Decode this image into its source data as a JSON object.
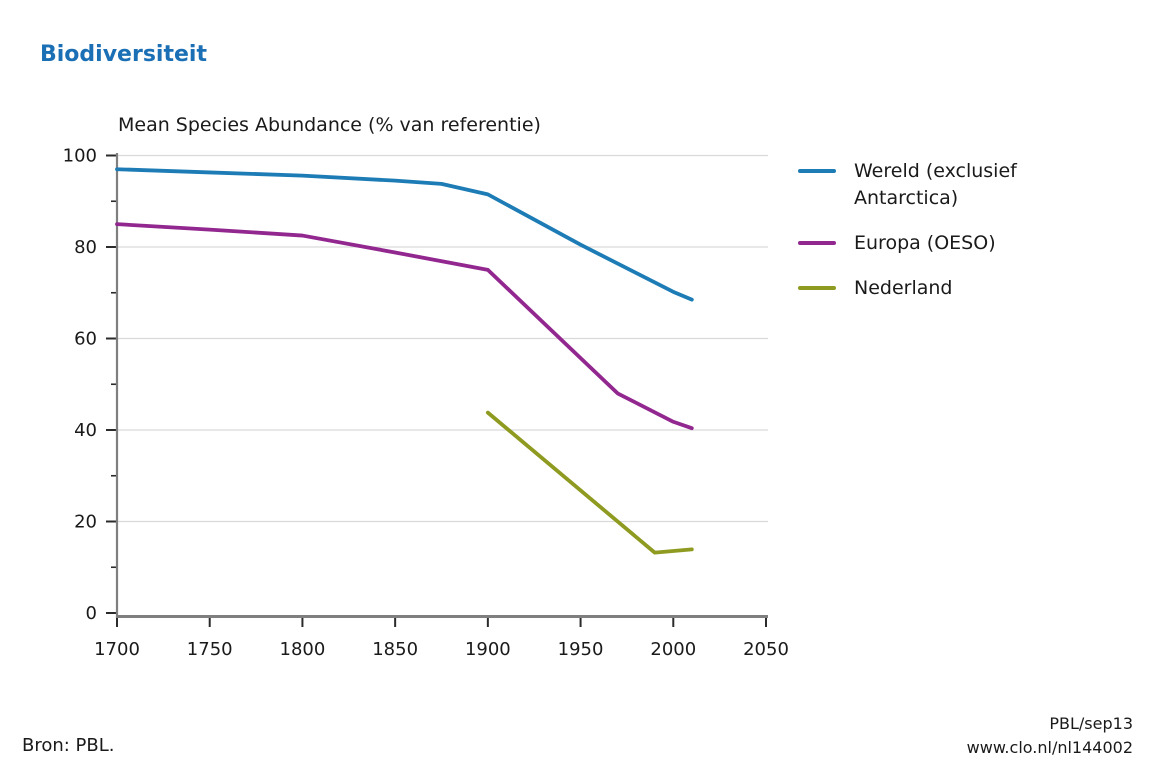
{
  "page": {
    "title": "Biodiversiteit",
    "title_color": "#1b6fb5",
    "source": "Bron: PBL.",
    "credit_line1": "PBL/sep13",
    "credit_line2": "www.clo.nl/nl144002"
  },
  "chart_data": {
    "type": "line",
    "title": "Mean Species Abundance (% van referentie)",
    "xlabel": "",
    "ylabel": "",
    "xlim": [
      1700,
      2050
    ],
    "ylim": [
      0,
      100
    ],
    "x_ticks": [
      1700,
      1750,
      1800,
      1850,
      1900,
      1950,
      2000,
      2050
    ],
    "y_ticks": [
      0,
      20,
      40,
      60,
      80,
      100
    ],
    "y_minor_ticks": [
      10,
      30,
      50,
      70,
      90
    ],
    "grid": "horizontal major",
    "gridline_color": "#d9d9d9",
    "axis_color": "#7f7f7f",
    "tick_color": "#2b2b2b",
    "text_color": "#1a1a1a",
    "legend_position": "right",
    "series": [
      {
        "name": "Wereld (exclusief Antarctica)",
        "color": "#1d7cb5",
        "points": [
          [
            1700,
            97
          ],
          [
            1750,
            96.3
          ],
          [
            1800,
            95.6
          ],
          [
            1850,
            94.5
          ],
          [
            1875,
            93.8
          ],
          [
            1900,
            91.5
          ],
          [
            1950,
            80.5
          ],
          [
            2000,
            70.2
          ],
          [
            2010,
            68.5
          ]
        ]
      },
      {
        "name": "Europa (OESO)",
        "color": "#92278f",
        "points": [
          [
            1700,
            85
          ],
          [
            1750,
            83.8
          ],
          [
            1800,
            82.5
          ],
          [
            1850,
            78.8
          ],
          [
            1900,
            75
          ],
          [
            1970,
            48
          ],
          [
            2000,
            41.8
          ],
          [
            2010,
            40.4
          ]
        ]
      },
      {
        "name": "Nederland",
        "color": "#8e9b20",
        "points": [
          [
            1900,
            43.8
          ],
          [
            1990,
            13.2
          ],
          [
            2010,
            13.9
          ]
        ]
      }
    ]
  }
}
